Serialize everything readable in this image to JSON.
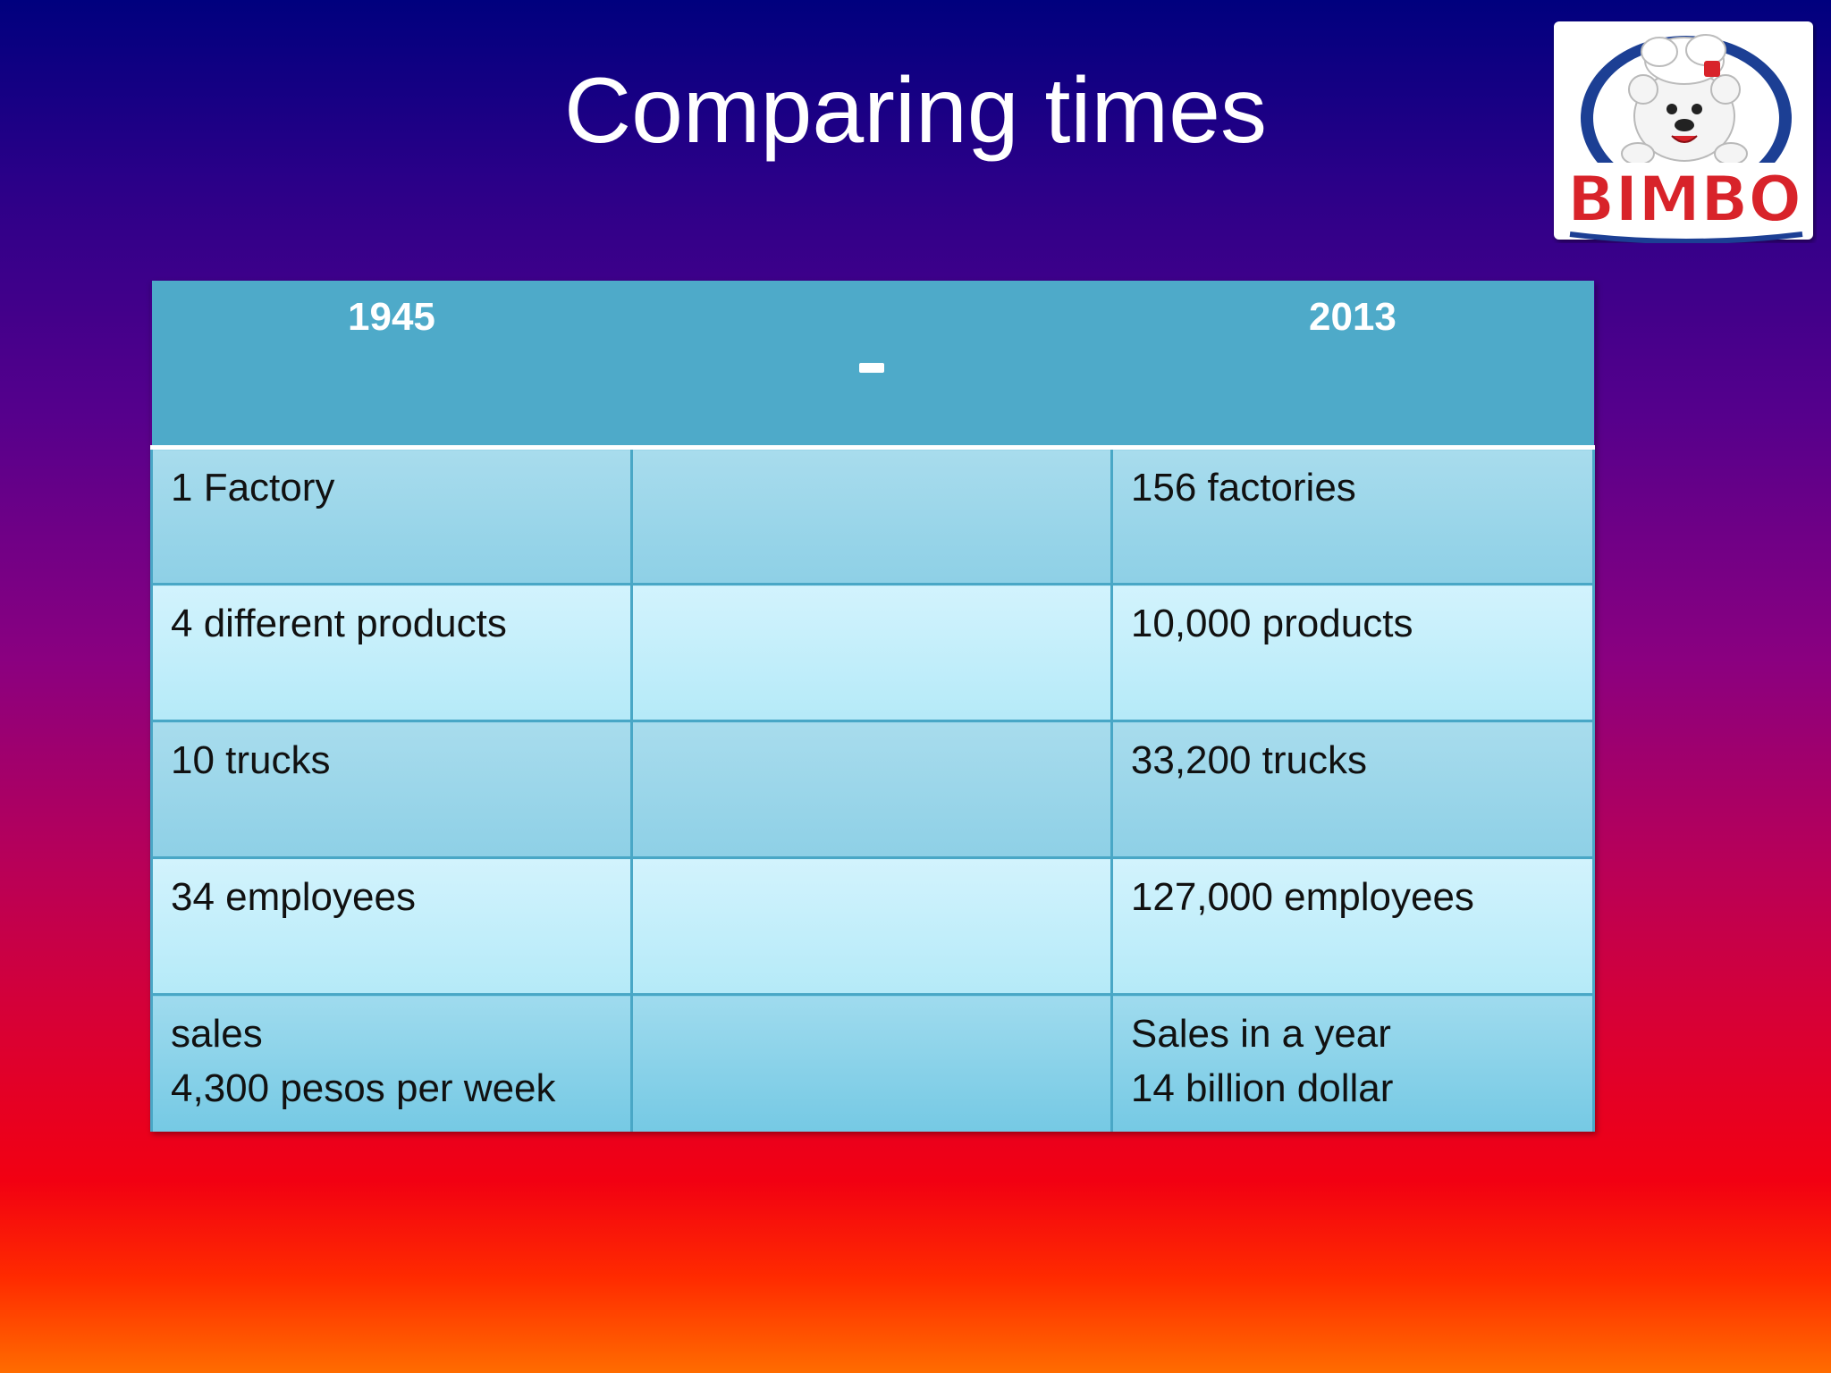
{
  "slide": {
    "title": "Comparing times"
  },
  "logo": {
    "brand_text": "BIMBO",
    "colors": {
      "primary_red": "#d8232a",
      "blue_ring": "#1c3f94",
      "white": "#ffffff"
    }
  },
  "table": {
    "headers": {
      "left": "1945",
      "middle": "-",
      "right": "2013"
    },
    "rows": [
      {
        "left": "1 Factory",
        "right": "156 factories"
      },
      {
        "left": "4 different products",
        "right": "10,000 products"
      },
      {
        "left": "10 trucks",
        "right": "33,200 trucks"
      },
      {
        "left": "34 employees",
        "right": "127,000 employees"
      },
      {
        "left_lines": [
          "sales",
          "4,300 pesos per week"
        ],
        "right_lines": [
          "Sales in a year",
          "14 billion dollar"
        ]
      }
    ],
    "colors": {
      "header": "#4eaac9",
      "row_dark": "#a8dced",
      "row_light": "#d2f3fd",
      "grid": "#49a7c6"
    }
  }
}
